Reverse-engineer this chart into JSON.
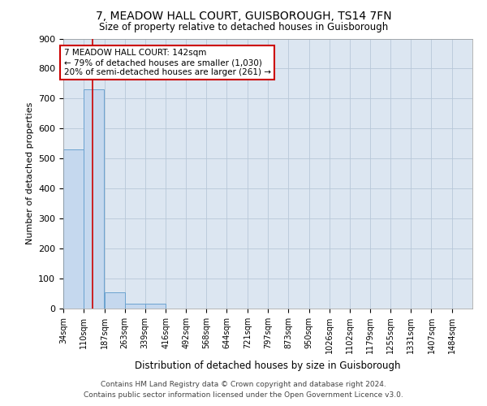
{
  "title": "7, MEADOW HALL COURT, GUISBOROUGH, TS14 7FN",
  "subtitle": "Size of property relative to detached houses in Guisborough",
  "xlabel": "Distribution of detached houses by size in Guisborough",
  "ylabel": "Number of detached properties",
  "footer_line1": "Contains HM Land Registry data © Crown copyright and database right 2024.",
  "footer_line2": "Contains public sector information licensed under the Open Government Licence v3.0.",
  "annotation_line1": "7 MEADOW HALL COURT: 142sqm",
  "annotation_line2": "← 79% of detached houses are smaller (1,030)",
  "annotation_line3": "20% of semi-detached houses are larger (261) →",
  "bin_edges": [
    34,
    110,
    187,
    263,
    339,
    416,
    492,
    568,
    644,
    721,
    797,
    873,
    950,
    1026,
    1102,
    1179,
    1255,
    1331,
    1407,
    1484,
    1560
  ],
  "bin_counts": [
    530,
    730,
    55,
    15,
    15,
    0,
    0,
    0,
    0,
    0,
    0,
    0,
    0,
    0,
    0,
    0,
    0,
    0,
    0,
    0
  ],
  "bar_color": "#c5d8ee",
  "bar_edge_color": "#6ba3d0",
  "vline_color": "#cc0000",
  "vline_x": 142,
  "annotation_box_edge": "#cc0000",
  "background_color": "#dce6f1",
  "ylim": [
    0,
    900
  ],
  "yticks": [
    0,
    100,
    200,
    300,
    400,
    500,
    600,
    700,
    800,
    900
  ]
}
